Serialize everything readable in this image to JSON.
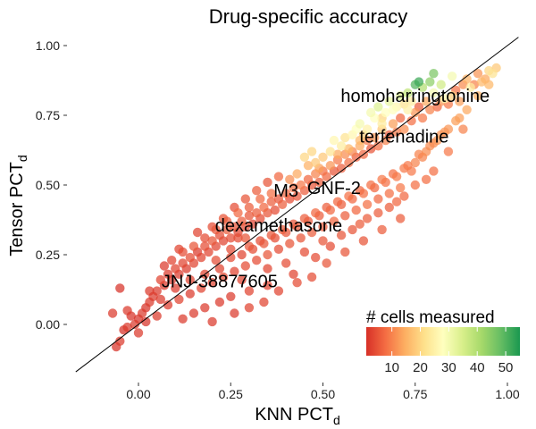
{
  "chart_data": {
    "type": "scatter",
    "title": "Drug-specific accuracy",
    "xlabel": "KNN PCT",
    "xlabel_sub": "d",
    "ylabel": "Tensor PCT",
    "ylabel_sub": "d",
    "xlim": [
      -0.12,
      1.03
    ],
    "ylim": [
      -0.17,
      1.05
    ],
    "xticks": [
      0.0,
      0.25,
      0.5,
      0.75,
      1.0
    ],
    "xtick_labels": [
      "0.00",
      "0.25",
      "0.50",
      "0.75",
      "1.00"
    ],
    "yticks": [
      0.0,
      0.25,
      0.5,
      0.75,
      1.0
    ],
    "ytick_labels": [
      "0.00",
      "0.25",
      "0.50",
      "0.75",
      "1.00"
    ],
    "grid": false,
    "reference_line": "y = x",
    "colorbar": {
      "title": "# cells measured",
      "min": 1,
      "max": 55,
      "ticks": [
        10,
        20,
        30,
        40,
        50
      ],
      "colors": [
        "#d73027",
        "#f46d43",
        "#fdae61",
        "#fee08b",
        "#ffffbf",
        "#d9ef8b",
        "#a6d96a",
        "#66bd63",
        "#1a9850"
      ]
    },
    "annotations": [
      {
        "label": "homoharringtonine",
        "x": 0.75,
        "y": 0.82
      },
      {
        "label": "terfenadine",
        "x": 0.72,
        "y": 0.675
      },
      {
        "label": "M3",
        "x": 0.4,
        "y": 0.48
      },
      {
        "label": "GNF-2",
        "x": 0.53,
        "y": 0.49
      },
      {
        "label": "dexamethasone",
        "x": 0.38,
        "y": 0.355
      },
      {
        "label": "JNJ-38877605",
        "x": 0.22,
        "y": 0.155
      }
    ],
    "points": [
      [
        0.97,
        0.92,
        18
      ],
      [
        0.96,
        0.9,
        22
      ],
      [
        0.94,
        0.88,
        14
      ],
      [
        0.92,
        0.9,
        12
      ],
      [
        0.95,
        0.91,
        20
      ],
      [
        0.93,
        0.87,
        16
      ],
      [
        0.91,
        0.86,
        10
      ],
      [
        0.9,
        0.85,
        24
      ],
      [
        0.88,
        0.86,
        11
      ],
      [
        0.89,
        0.88,
        15
      ],
      [
        0.86,
        0.84,
        8
      ],
      [
        0.87,
        0.8,
        13
      ],
      [
        0.85,
        0.82,
        19
      ],
      [
        0.84,
        0.79,
        9
      ],
      [
        0.83,
        0.81,
        26
      ],
      [
        0.82,
        0.8,
        12
      ],
      [
        0.8,
        0.83,
        30
      ],
      [
        0.81,
        0.78,
        7
      ],
      [
        0.79,
        0.77,
        10
      ],
      [
        0.78,
        0.8,
        14
      ],
      [
        0.76,
        0.78,
        6
      ],
      [
        0.77,
        0.74,
        9
      ],
      [
        0.75,
        0.76,
        12
      ],
      [
        0.74,
        0.73,
        8
      ],
      [
        0.73,
        0.77,
        25
      ],
      [
        0.72,
        0.7,
        11
      ],
      [
        0.71,
        0.74,
        7
      ],
      [
        0.7,
        0.69,
        9
      ],
      [
        0.69,
        0.72,
        13
      ],
      [
        0.68,
        0.68,
        6
      ],
      [
        0.67,
        0.66,
        10
      ],
      [
        0.66,
        0.7,
        18
      ],
      [
        0.65,
        0.64,
        8
      ],
      [
        0.64,
        0.67,
        12
      ],
      [
        0.63,
        0.63,
        5
      ],
      [
        0.62,
        0.66,
        9
      ],
      [
        0.61,
        0.61,
        7
      ],
      [
        0.6,
        0.64,
        14
      ],
      [
        0.59,
        0.6,
        6
      ],
      [
        0.58,
        0.62,
        10
      ],
      [
        0.57,
        0.58,
        8
      ],
      [
        0.56,
        0.61,
        11
      ],
      [
        0.55,
        0.56,
        6
      ],
      [
        0.54,
        0.59,
        9
      ],
      [
        0.53,
        0.55,
        5
      ],
      [
        0.52,
        0.57,
        12
      ],
      [
        0.51,
        0.53,
        7
      ],
      [
        0.5,
        0.55,
        8
      ],
      [
        0.49,
        0.51,
        6
      ],
      [
        0.48,
        0.54,
        10
      ],
      [
        0.47,
        0.5,
        5
      ],
      [
        0.46,
        0.52,
        7
      ],
      [
        0.45,
        0.48,
        6
      ],
      [
        0.44,
        0.5,
        9
      ],
      [
        0.43,
        0.46,
        5
      ],
      [
        0.42,
        0.49,
        8
      ],
      [
        0.41,
        0.45,
        4
      ],
      [
        0.4,
        0.47,
        7
      ],
      [
        0.39,
        0.43,
        6
      ],
      [
        0.38,
        0.45,
        5
      ],
      [
        0.37,
        0.41,
        4
      ],
      [
        0.36,
        0.44,
        6
      ],
      [
        0.35,
        0.4,
        5
      ],
      [
        0.34,
        0.42,
        7
      ],
      [
        0.33,
        0.38,
        4
      ],
      [
        0.32,
        0.4,
        6
      ],
      [
        0.31,
        0.36,
        3
      ],
      [
        0.3,
        0.39,
        5
      ],
      [
        0.29,
        0.35,
        4
      ],
      [
        0.28,
        0.37,
        6
      ],
      [
        0.27,
        0.33,
        3
      ],
      [
        0.26,
        0.35,
        5
      ],
      [
        0.25,
        0.31,
        4
      ],
      [
        0.24,
        0.34,
        6
      ],
      [
        0.23,
        0.3,
        3
      ],
      [
        0.22,
        0.32,
        4
      ],
      [
        0.21,
        0.28,
        3
      ],
      [
        0.2,
        0.3,
        5
      ],
      [
        0.19,
        0.26,
        3
      ],
      [
        0.18,
        0.28,
        4
      ],
      [
        0.17,
        0.24,
        3
      ],
      [
        0.16,
        0.26,
        2
      ],
      [
        0.15,
        0.22,
        3
      ],
      [
        0.14,
        0.24,
        4
      ],
      [
        0.13,
        0.2,
        2
      ],
      [
        0.12,
        0.22,
        3
      ],
      [
        0.11,
        0.18,
        2
      ],
      [
        0.1,
        0.2,
        3
      ],
      [
        0.09,
        0.16,
        2
      ],
      [
        0.08,
        0.18,
        2
      ],
      [
        0.07,
        0.14,
        2
      ],
      [
        0.06,
        0.16,
        3
      ],
      [
        0.05,
        0.12,
        2
      ],
      [
        0.04,
        0.1,
        2
      ],
      [
        0.03,
        0.08,
        2
      ],
      [
        0.02,
        0.06,
        1
      ],
      [
        0.01,
        0.04,
        2
      ],
      [
        0.0,
        0.02,
        1
      ],
      [
        -0.01,
        0.0,
        2
      ],
      [
        -0.02,
        0.03,
        1
      ],
      [
        -0.03,
        0.05,
        2
      ],
      [
        -0.04,
        -0.02,
        1
      ],
      [
        -0.05,
        -0.06,
        2
      ],
      [
        -0.06,
        -0.08,
        1
      ],
      [
        -0.07,
        0.04,
        2
      ],
      [
        -0.05,
        0.13,
        1
      ],
      [
        -0.03,
        -0.01,
        2
      ],
      [
        0.0,
        -0.03,
        2
      ],
      [
        0.02,
        0.01,
        1
      ],
      [
        0.05,
        0.03,
        2
      ],
      [
        0.08,
        0.07,
        2
      ],
      [
        0.11,
        0.09,
        3
      ],
      [
        0.14,
        0.11,
        2
      ],
      [
        0.17,
        0.13,
        3
      ],
      [
        0.2,
        0.15,
        3
      ],
      [
        0.23,
        0.17,
        4
      ],
      [
        0.26,
        0.19,
        3
      ],
      [
        0.29,
        0.21,
        4
      ],
      [
        0.32,
        0.23,
        4
      ],
      [
        0.35,
        0.25,
        5
      ],
      [
        0.38,
        0.27,
        4
      ],
      [
        0.41,
        0.29,
        5
      ],
      [
        0.44,
        0.31,
        5
      ],
      [
        0.47,
        0.33,
        6
      ],
      [
        0.5,
        0.35,
        6
      ],
      [
        0.53,
        0.37,
        7
      ],
      [
        0.56,
        0.39,
        6
      ],
      [
        0.59,
        0.41,
        7
      ],
      [
        0.62,
        0.43,
        8
      ],
      [
        0.65,
        0.45,
        7
      ],
      [
        0.68,
        0.47,
        8
      ],
      [
        0.71,
        0.49,
        9
      ],
      [
        0.74,
        0.55,
        9
      ],
      [
        0.77,
        0.6,
        10
      ],
      [
        0.8,
        0.65,
        11
      ],
      [
        0.83,
        0.69,
        12
      ],
      [
        0.86,
        0.73,
        13
      ],
      [
        0.89,
        0.77,
        14
      ],
      [
        0.92,
        0.82,
        15
      ],
      [
        0.95,
        0.86,
        16
      ],
      [
        0.3,
        0.28,
        5
      ],
      [
        0.33,
        0.3,
        4
      ],
      [
        0.36,
        0.32,
        5
      ],
      [
        0.39,
        0.34,
        6
      ],
      [
        0.42,
        0.36,
        5
      ],
      [
        0.45,
        0.38,
        6
      ],
      [
        0.48,
        0.4,
        7
      ],
      [
        0.51,
        0.42,
        6
      ],
      [
        0.54,
        0.44,
        7
      ],
      [
        0.57,
        0.46,
        8
      ],
      [
        0.6,
        0.48,
        7
      ],
      [
        0.63,
        0.5,
        8
      ],
      [
        0.66,
        0.52,
        9
      ],
      [
        0.69,
        0.54,
        8
      ],
      [
        0.72,
        0.56,
        9
      ],
      [
        0.75,
        0.58,
        10
      ],
      [
        0.78,
        0.62,
        11
      ],
      [
        0.81,
        0.66,
        12
      ],
      [
        0.84,
        0.7,
        12
      ],
      [
        0.87,
        0.74,
        13
      ],
      [
        0.25,
        0.24,
        4
      ],
      [
        0.28,
        0.25,
        3
      ],
      [
        0.31,
        0.27,
        4
      ],
      [
        0.34,
        0.29,
        5
      ],
      [
        0.37,
        0.31,
        4
      ],
      [
        0.4,
        0.33,
        5
      ],
      [
        0.43,
        0.35,
        6
      ],
      [
        0.46,
        0.37,
        5
      ],
      [
        0.49,
        0.39,
        6
      ],
      [
        0.52,
        0.41,
        7
      ],
      [
        0.55,
        0.43,
        6
      ],
      [
        0.58,
        0.45,
        7
      ],
      [
        0.61,
        0.47,
        8
      ],
      [
        0.64,
        0.49,
        7
      ],
      [
        0.67,
        0.51,
        8
      ],
      [
        0.7,
        0.53,
        9
      ],
      [
        0.73,
        0.57,
        9
      ],
      [
        0.76,
        0.61,
        10
      ],
      [
        0.79,
        0.64,
        11
      ],
      [
        0.82,
        0.68,
        12
      ],
      [
        0.35,
        0.2,
        3
      ],
      [
        0.4,
        0.22,
        4
      ],
      [
        0.45,
        0.26,
        4
      ],
      [
        0.5,
        0.3,
        5
      ],
      [
        0.55,
        0.32,
        5
      ],
      [
        0.6,
        0.36,
        6
      ],
      [
        0.65,
        0.4,
        6
      ],
      [
        0.7,
        0.44,
        7
      ],
      [
        0.75,
        0.5,
        8
      ],
      [
        0.8,
        0.55,
        8
      ],
      [
        0.42,
        0.18,
        3
      ],
      [
        0.48,
        0.24,
        4
      ],
      [
        0.52,
        0.28,
        4
      ],
      [
        0.58,
        0.34,
        5
      ],
      [
        0.62,
        0.38,
        6
      ],
      [
        0.68,
        0.42,
        6
      ],
      [
        0.72,
        0.46,
        7
      ],
      [
        0.78,
        0.52,
        8
      ],
      [
        0.84,
        0.62,
        9
      ],
      [
        0.88,
        0.7,
        10
      ],
      [
        0.25,
        0.1,
        2
      ],
      [
        0.3,
        0.12,
        3
      ],
      [
        0.35,
        0.14,
        3
      ],
      [
        0.28,
        0.16,
        3
      ],
      [
        0.22,
        0.08,
        2
      ],
      [
        0.18,
        0.06,
        2
      ],
      [
        0.15,
        0.04,
        2
      ],
      [
        0.12,
        0.02,
        2
      ],
      [
        0.2,
        0.01,
        2
      ],
      [
        0.26,
        0.04,
        2
      ],
      [
        0.3,
        0.06,
        3
      ],
      [
        0.34,
        0.08,
        3
      ],
      [
        0.38,
        0.12,
        3
      ],
      [
        0.43,
        0.15,
        4
      ],
      [
        0.47,
        0.17,
        4
      ],
      [
        0.51,
        0.22,
        5
      ],
      [
        0.56,
        0.26,
        5
      ],
      [
        0.61,
        0.3,
        5
      ],
      [
        0.66,
        0.34,
        6
      ],
      [
        0.71,
        0.38,
        6
      ],
      [
        0.45,
        0.6,
        20
      ],
      [
        0.48,
        0.58,
        18
      ],
      [
        0.52,
        0.62,
        22
      ],
      [
        0.55,
        0.64,
        24
      ],
      [
        0.58,
        0.68,
        26
      ],
      [
        0.62,
        0.7,
        25
      ],
      [
        0.64,
        0.74,
        28
      ],
      [
        0.66,
        0.72,
        24
      ],
      [
        0.6,
        0.72,
        30
      ],
      [
        0.56,
        0.67,
        22
      ],
      [
        0.5,
        0.6,
        18
      ],
      [
        0.47,
        0.62,
        20
      ],
      [
        0.53,
        0.66,
        26
      ],
      [
        0.59,
        0.7,
        28
      ],
      [
        0.63,
        0.76,
        30
      ],
      [
        0.67,
        0.76,
        28
      ],
      [
        0.7,
        0.78,
        26
      ],
      [
        0.74,
        0.8,
        24
      ],
      [
        0.71,
        0.82,
        34
      ],
      [
        0.73,
        0.83,
        38
      ],
      [
        0.77,
        0.85,
        40
      ],
      [
        0.79,
        0.87,
        44
      ],
      [
        0.82,
        0.86,
        36
      ],
      [
        0.85,
        0.89,
        30
      ],
      [
        0.75,
        0.86,
        50
      ],
      [
        0.76,
        0.87,
        52
      ],
      [
        0.8,
        0.9,
        46
      ],
      [
        0.68,
        0.8,
        32
      ],
      [
        0.69,
        0.77,
        28
      ],
      [
        0.65,
        0.78,
        34
      ],
      [
        0.6,
        0.66,
        16
      ],
      [
        0.54,
        0.61,
        14
      ],
      [
        0.49,
        0.56,
        13
      ],
      [
        0.43,
        0.54,
        14
      ],
      [
        0.41,
        0.52,
        11
      ],
      [
        0.46,
        0.57,
        15
      ],
      [
        0.57,
        0.63,
        16
      ],
      [
        0.61,
        0.68,
        18
      ],
      [
        0.66,
        0.74,
        20
      ],
      [
        0.72,
        0.79,
        22
      ],
      [
        0.36,
        0.47,
        8
      ],
      [
        0.33,
        0.45,
        7
      ],
      [
        0.3,
        0.42,
        6
      ],
      [
        0.27,
        0.4,
        7
      ],
      [
        0.24,
        0.37,
        6
      ],
      [
        0.21,
        0.34,
        5
      ],
      [
        0.18,
        0.31,
        4
      ],
      [
        0.15,
        0.28,
        5
      ],
      [
        0.12,
        0.26,
        4
      ],
      [
        0.09,
        0.23,
        3
      ],
      [
        0.2,
        0.35,
        4
      ],
      [
        0.23,
        0.38,
        5
      ],
      [
        0.26,
        0.42,
        4
      ],
      [
        0.29,
        0.45,
        5
      ],
      [
        0.32,
        0.48,
        6
      ],
      [
        0.35,
        0.51,
        5
      ],
      [
        0.38,
        0.53,
        7
      ],
      [
        0.27,
        0.31,
        4
      ],
      [
        0.22,
        0.2,
        3
      ],
      [
        0.18,
        0.18,
        3
      ],
      [
        0.14,
        0.16,
        3
      ],
      [
        0.1,
        0.13,
        2
      ],
      [
        0.06,
        0.09,
        2
      ],
      [
        0.03,
        0.12,
        2
      ],
      [
        0.07,
        0.21,
        2
      ],
      [
        0.11,
        0.27,
        3
      ],
      [
        0.16,
        0.33,
        3
      ],
      [
        0.21,
        0.23,
        4
      ],
      [
        0.25,
        0.27,
        4
      ],
      [
        0.29,
        0.31,
        5
      ]
    ]
  }
}
